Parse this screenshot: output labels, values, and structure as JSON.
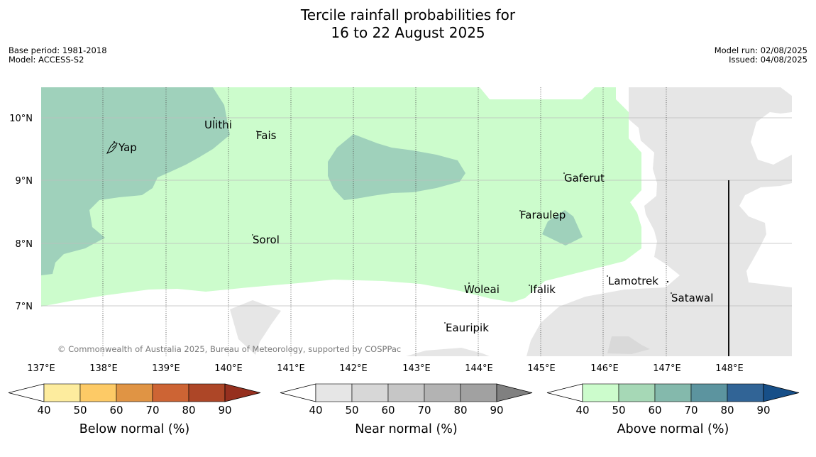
{
  "title": {
    "line1": "Tercile rainfall probabilities for",
    "line2": "16 to 22 August 2025"
  },
  "meta": {
    "base_period": "Base period: 1981-2018",
    "model": "Model: ACCESS-S2",
    "model_run": "Model run: 02/08/2025",
    "issued": "Issued: 04/08/2025"
  },
  "map": {
    "lon_labels": [
      "137°E",
      "138°E",
      "139°E",
      "140°E",
      "141°E",
      "142°E",
      "143°E",
      "144°E",
      "145°E",
      "146°E",
      "147°E",
      "148°E"
    ],
    "lat_labels": [
      "10°N",
      "9°N",
      "8°N",
      "7°N"
    ],
    "places": {
      "ulithi": "Ulithi",
      "fais": "Fais",
      "yap": "Yap",
      "gaferut": "Gaferut",
      "faraulep": "Faraulep",
      "sorol": "Sorol",
      "lamotrek": "Lamotrek",
      "woleai": "Woleai",
      "ifalik": "Ifalik",
      "satawal": "Satawal",
      "eauripik": "Eauripik"
    },
    "copyright": "© Commonwealth of Australia 2025, Bureau of Meteorology, supported by COSPPac",
    "colors": {
      "above_40_50": "#ccfccc",
      "above_50_60": "#9fd1bb",
      "near_40_50": "#e6e6e6",
      "near_50_60": "#d9d9d9"
    }
  },
  "colorbars": {
    "ticks": [
      "40",
      "50",
      "60",
      "70",
      "80",
      "90"
    ],
    "below": {
      "label": "Below normal (%)",
      "colors": [
        "#fdec9e",
        "#fdca66",
        "#e09444",
        "#cd6434",
        "#ad4627",
        "#96301f"
      ]
    },
    "near": {
      "label": "Near normal (%)",
      "colors": [
        "#e6e6e6",
        "#d7d7d7",
        "#c6c6c6",
        "#b3b3b3",
        "#a1a1a1",
        "#808080"
      ]
    },
    "above": {
      "label": "Above normal (%)",
      "colors": [
        "#ccfccc",
        "#a6d8b6",
        "#84b9ac",
        "#5c949f",
        "#316496",
        "#174f88"
      ]
    }
  }
}
